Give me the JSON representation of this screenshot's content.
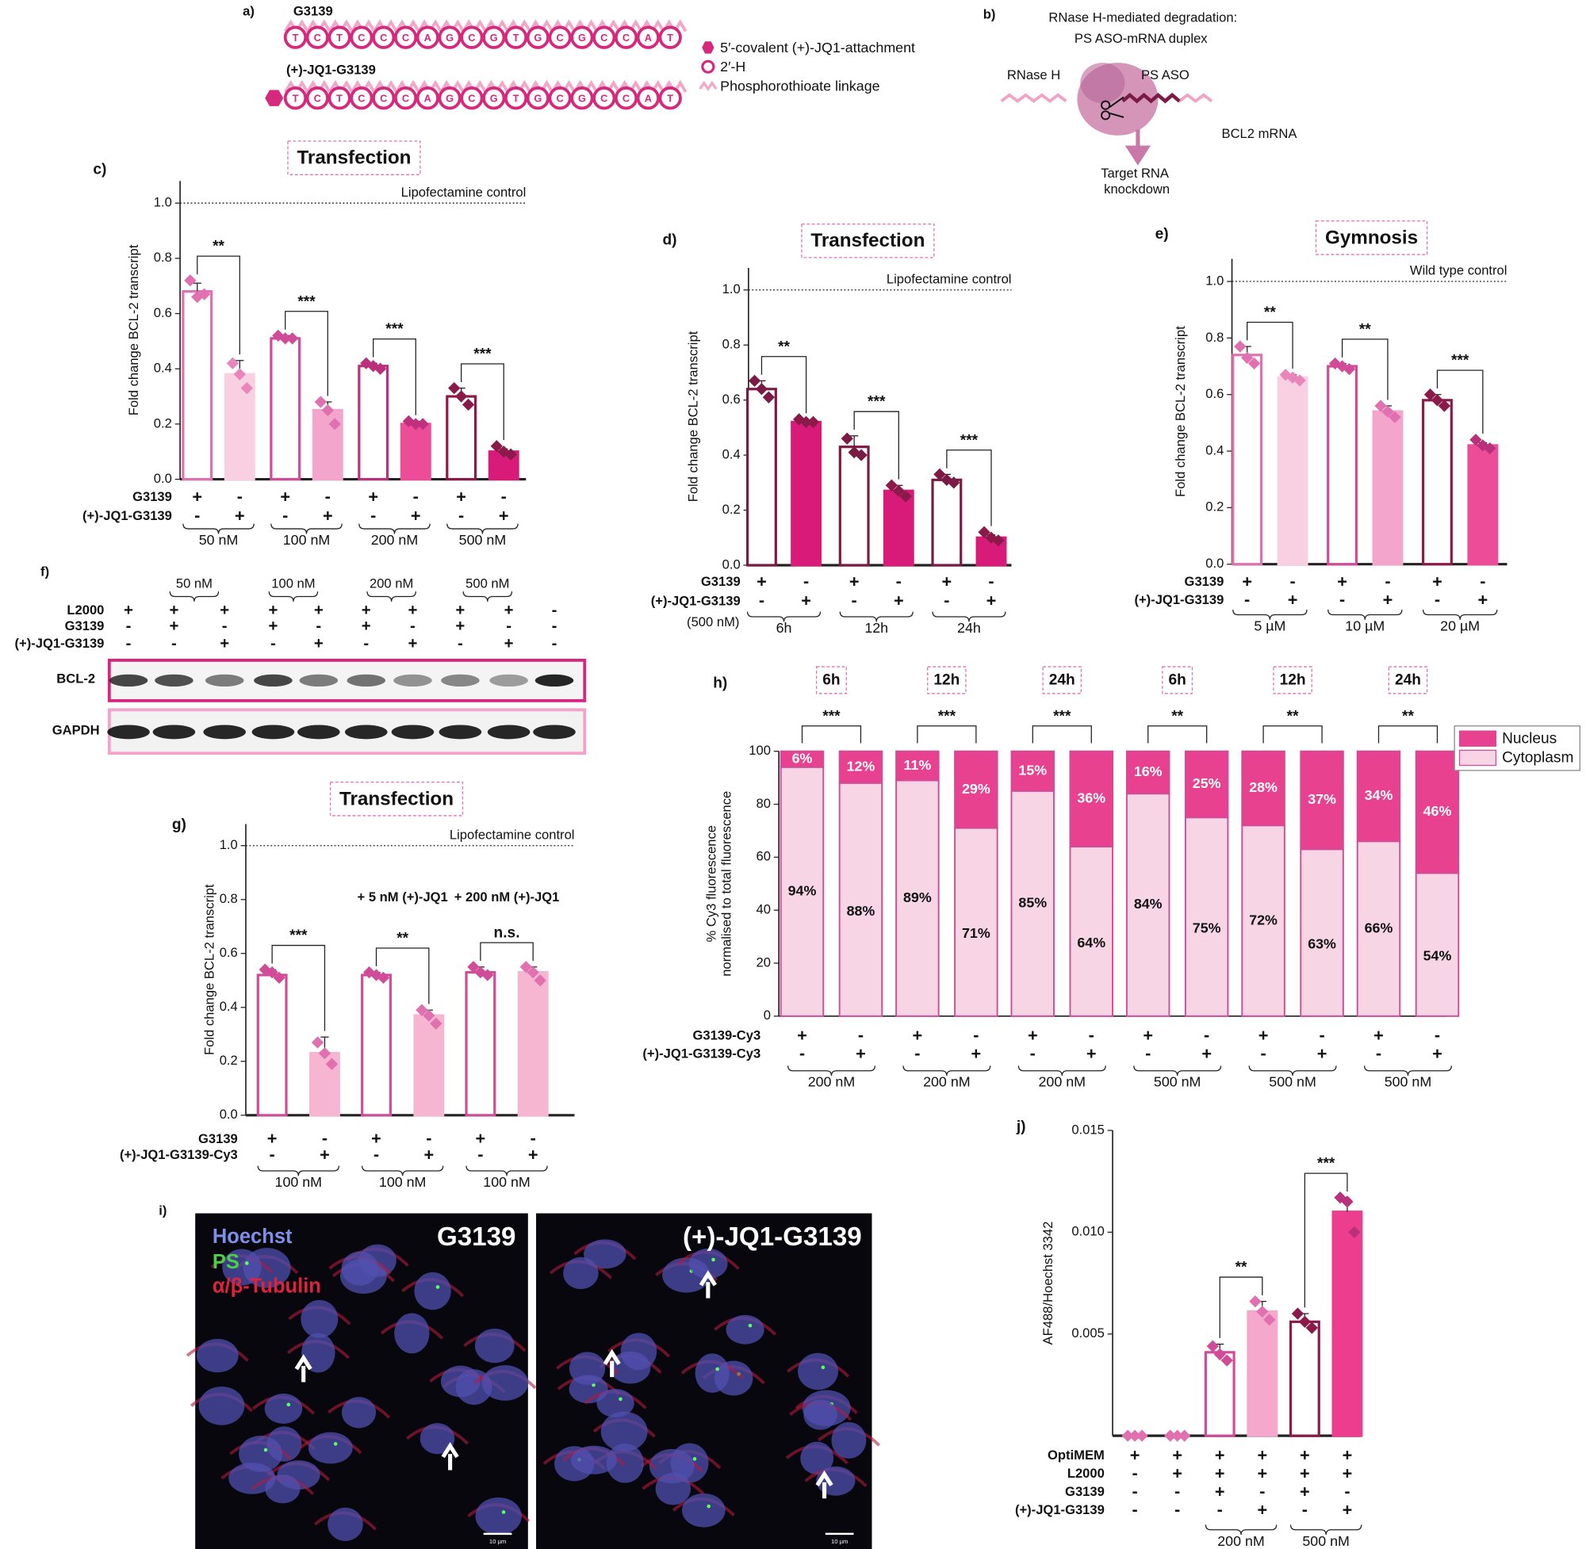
{
  "panel_a": {
    "label": "a)",
    "sequence_names": [
      "G3139",
      "(+)-JQ1-G3139"
    ],
    "sequence": [
      "T",
      "C",
      "T",
      "C",
      "C",
      "C",
      "A",
      "G",
      "C",
      "G",
      "T",
      "G",
      "C",
      "G",
      "C",
      "C",
      "A",
      "T"
    ],
    "legend": [
      "5′-covalent (+)-JQ1-attachment",
      "2′-H",
      "Phosphorothioate linkage"
    ]
  },
  "panel_b": {
    "label": "b)",
    "title": [
      "RNase H-mediated degradation:",
      "PS ASO-mRNA duplex"
    ],
    "labels": [
      "RNase H",
      "PS ASO",
      "BCL2 mRNA"
    ],
    "outcome": [
      "Target RNA",
      "knockdown"
    ]
  },
  "panel_f": {
    "label": "f)",
    "groups": [
      "50 nM",
      "100 nM",
      "200 nM",
      "500 nM"
    ],
    "conditions": [
      {
        "name": "L2000",
        "signs": [
          "+",
          "+",
          "+",
          "+",
          "+",
          "+",
          "+",
          "+",
          "+",
          "-"
        ]
      },
      {
        "name": "G3139",
        "signs": [
          "-",
          "+",
          "-",
          "+",
          "-",
          "+",
          "-",
          "+",
          "-",
          "-"
        ]
      },
      {
        "name": "(+)-JQ1-G3139",
        "signs": [
          "-",
          "-",
          "+",
          "-",
          "+",
          "-",
          "+",
          "-",
          "+",
          "-"
        ]
      }
    ],
    "bands": [
      "BCL-2",
      "GAPDH"
    ]
  },
  "panel_i": {
    "label": "i)",
    "stains": [
      "Hoechst",
      "PS",
      "α/β-Tubulin"
    ],
    "images": [
      "G3139",
      "(+)-JQ1-G3139"
    ],
    "scale_bar": "10 µm"
  },
  "chart_data": [
    {
      "type": "bar",
      "panel": "c)",
      "title": "Transfection",
      "y_label": "Fold change BCL-2 transcript",
      "ylim": [
        0,
        1.08
      ],
      "yticks": [
        {
          "value": 0,
          "label": "0.0"
        },
        0.2,
        0.4,
        0.6,
        0.8,
        {
          "value": 1,
          "label": "1.0"
        }
      ],
      "reference": {
        "value": 1,
        "label": "Lipofectamine control"
      },
      "values": [
        0.68,
        0.38,
        0.51,
        0.25,
        0.41,
        0.2,
        0.3,
        0.1
      ],
      "errors": [
        0.03,
        0.05,
        0.01,
        0.03,
        0.01,
        0.01,
        0.03,
        0.01
      ],
      "points": [
        [
          0.72,
          0.66,
          0.67
        ],
        [
          0.42,
          0.38,
          0.33
        ],
        [
          0.52,
          0.51,
          0.51
        ],
        [
          0.28,
          0.25,
          0.2
        ],
        [
          0.42,
          0.41,
          0.4
        ],
        [
          0.21,
          0.2,
          0.2
        ],
        [
          0.33,
          0.3,
          0.27
        ],
        [
          0.12,
          0.1,
          0.09
        ]
      ],
      "colors": [
        "#e070b0",
        "#e885bb",
        "#d04b98",
        "#e070b0",
        "#b8317a",
        "#c0307f",
        "#8b1a4a",
        "#8b1a4a"
      ],
      "fills": [
        "#ffffff",
        "#f9cfe2",
        "#ffffff",
        "#f3a5cb",
        "#ffffff",
        "#ec4c98",
        "#ffffff",
        "#d81b78"
      ],
      "conditions": [
        {
          "name": "G3139",
          "signs": [
            "+",
            "-",
            "+",
            "-",
            "+",
            "-",
            "+",
            "-"
          ]
        },
        {
          "name": "(+)-JQ1-G3139",
          "signs": [
            "-",
            "+",
            "-",
            "+",
            "-",
            "+",
            "-",
            "+"
          ]
        }
      ],
      "groups": [
        "50 nM",
        "100 nM",
        "200 nM",
        "500 nM"
      ],
      "significance": [
        "**",
        "***",
        "***",
        "***"
      ]
    },
    {
      "type": "bar",
      "panel": "d)",
      "title": "Transfection",
      "y_label": "Fold change BCL-2 transcript",
      "ylim": [
        0,
        1.08
      ],
      "yticks": [
        {
          "value": 0,
          "label": "0.0"
        },
        0.2,
        0.4,
        0.6,
        0.8,
        {
          "value": 1,
          "label": "1.0"
        }
      ],
      "reference": {
        "value": 1,
        "label": "Lipofectamine control"
      },
      "values": [
        0.64,
        0.52,
        0.43,
        0.27,
        0.31,
        0.1
      ],
      "errors": [
        0.03,
        0.005,
        0.04,
        0.02,
        0.02,
        0.01
      ],
      "points": [
        [
          0.67,
          0.64,
          0.61
        ],
        [
          0.53,
          0.52,
          0.52
        ],
        [
          0.46,
          0.41,
          0.4
        ],
        [
          0.29,
          0.27,
          0.25
        ],
        [
          0.33,
          0.31,
          0.3
        ],
        [
          0.12,
          0.1,
          0.09
        ]
      ],
      "colors": [
        "#7a1a45",
        "#8b1a4a",
        "#7a1a45",
        "#8b1a4a",
        "#7a1a45",
        "#8b1a4a"
      ],
      "fills": [
        "#ffffff",
        "#d81b78",
        "#ffffff",
        "#d81b78",
        "#ffffff",
        "#d81b78"
      ],
      "conditions": [
        {
          "name": "G3139",
          "signs": [
            "+",
            "-",
            "+",
            "-",
            "+",
            "-"
          ]
        },
        {
          "name": "(+)-JQ1-G3139",
          "signs": [
            "-",
            "+",
            "-",
            "+",
            "-",
            "+"
          ]
        }
      ],
      "note": "(500 nM)",
      "groups": [
        "6h",
        "12h",
        "24h"
      ],
      "significance": [
        "**",
        "***",
        "***"
      ]
    },
    {
      "type": "bar",
      "panel": "e)",
      "title": "Gymnosis",
      "y_label": "Fold change BCL-2 transcript",
      "ylim": [
        0,
        1.08
      ],
      "yticks": [
        {
          "value": 0,
          "label": "0.0"
        },
        0.2,
        0.4,
        0.6,
        0.8,
        {
          "value": 1,
          "label": "1.0"
        }
      ],
      "reference": {
        "value": 1,
        "label": "Wild type control"
      },
      "values": [
        0.74,
        0.66,
        0.7,
        0.54,
        0.58,
        0.42
      ],
      "errors": [
        0.03,
        0.01,
        0.01,
        0.02,
        0.02,
        0.01
      ],
      "points": [
        [
          0.77,
          0.73,
          0.71
        ],
        [
          0.67,
          0.66,
          0.65
        ],
        [
          0.71,
          0.7,
          0.69
        ],
        [
          0.56,
          0.54,
          0.52
        ],
        [
          0.6,
          0.58,
          0.56
        ],
        [
          0.44,
          0.42,
          0.41
        ]
      ],
      "colors": [
        "#e070b0",
        "#e885bb",
        "#d04b98",
        "#e070b0",
        "#8b1a4a",
        "#b8317a"
      ],
      "fills": [
        "#ffffff",
        "#f9cfe2",
        "#ffffff",
        "#f3a5cb",
        "#ffffff",
        "#ec4c98"
      ],
      "conditions": [
        {
          "name": "G3139",
          "signs": [
            "+",
            "-",
            "+",
            "-",
            "+",
            "-"
          ]
        },
        {
          "name": "(+)-JQ1-G3139",
          "signs": [
            "-",
            "+",
            "-",
            "+",
            "-",
            "+"
          ]
        }
      ],
      "groups": [
        "5 µM",
        "10 µM",
        "20 µM"
      ],
      "significance": [
        "**",
        "**",
        "***"
      ]
    },
    {
      "type": "bar",
      "panel": "g)",
      "title": "Transfection",
      "y_label": "Fold change BCL-2 transcript",
      "ylim": [
        0,
        1.08
      ],
      "yticks": [
        {
          "value": 0,
          "label": "0.0"
        },
        0.2,
        0.4,
        0.6,
        0.8,
        {
          "value": 1,
          "label": "1.0"
        }
      ],
      "reference": {
        "value": 1,
        "label": "Lipofectamine control"
      },
      "values": [
        0.52,
        0.23,
        0.52,
        0.37,
        0.53,
        0.53
      ],
      "errors": [
        0.02,
        0.06,
        0.01,
        0.02,
        0.02,
        0.02
      ],
      "points": [
        [
          0.54,
          0.53,
          0.51
        ],
        [
          0.27,
          0.23,
          0.19
        ],
        [
          0.53,
          0.52,
          0.51
        ],
        [
          0.39,
          0.37,
          0.34
        ],
        [
          0.55,
          0.53,
          0.52
        ],
        [
          0.55,
          0.53,
          0.5
        ]
      ],
      "colors": [
        "#d04b98",
        "#e070b0",
        "#d04b98",
        "#e070b0",
        "#d04b98",
        "#e070b0"
      ],
      "fills": [
        "#ffffff",
        "#f6b6d2",
        "#ffffff",
        "#f6b6d2",
        "#ffffff",
        "#f6b6d2"
      ],
      "conditions": [
        {
          "name": "G3139",
          "signs": [
            "+",
            "-",
            "+",
            "-",
            "+",
            "-"
          ]
        },
        {
          "name": "(+)-JQ1-G3139-Cy3",
          "signs": [
            "-",
            "+",
            "-",
            "+",
            "-",
            "+"
          ]
        }
      ],
      "annotations": [
        null,
        "+ 5 nM (+)-JQ1",
        "+ 200 nM (+)-JQ1"
      ],
      "groups": [
        "100 nM",
        "100 nM",
        "100 nM"
      ],
      "significance": [
        "***",
        "**",
        "n.s."
      ]
    },
    {
      "type": "stacked_bar",
      "panel": "h)",
      "y_label": [
        "% Cy3 fluorescence",
        "normalised to total fluorescence"
      ],
      "ylim": [
        0,
        100
      ],
      "yticks": [
        0,
        20,
        40,
        60,
        80,
        100
      ],
      "legend": "upper right",
      "series": [
        {
          "name": "Cytoplasm",
          "color": "#f8d5e5",
          "values": [
            94,
            88,
            89,
            71,
            85,
            64,
            84,
            75,
            72,
            63,
            66,
            54
          ],
          "value_labels": [
            "94%",
            "88%",
            "89%",
            "71%",
            "85%",
            "64%",
            "84%",
            "75%",
            "72%",
            "63%",
            "66%",
            "54%"
          ]
        },
        {
          "name": "Nucleus",
          "color": "#e8418f",
          "values": [
            6,
            12,
            11,
            29,
            15,
            36,
            16,
            25,
            28,
            37,
            34,
            46
          ],
          "value_labels": [
            "6%",
            "12%",
            "11%",
            "29%",
            "15%",
            "36%",
            "16%",
            "25%",
            "28%",
            "37%",
            "34%",
            "46%"
          ]
        }
      ],
      "time_labels": [
        "6h",
        "12h",
        "24h",
        "6h",
        "12h",
        "24h"
      ],
      "conditions": [
        {
          "name": "G3139-Cy3",
          "signs": [
            "+",
            "-",
            "+",
            "-",
            "+",
            "-",
            "+",
            "-",
            "+",
            "-",
            "+",
            "-"
          ]
        },
        {
          "name": "(+)-JQ1-G3139-Cy3",
          "signs": [
            "-",
            "+",
            "-",
            "+",
            "-",
            "+",
            "-",
            "+",
            "-",
            "+",
            "-",
            "+"
          ]
        }
      ],
      "groups": [
        "200 nM",
        "200 nM",
        "200 nM",
        "500 nM",
        "500 nM",
        "500 nM"
      ],
      "significance": [
        "***",
        "***",
        "***",
        "**",
        "**",
        "**"
      ]
    },
    {
      "type": "bar",
      "panel": "j)",
      "y_label": "AF488/Hoechst 3342",
      "ylim": [
        0,
        0.015
      ],
      "yticks": [
        0.005,
        {
          "value": 0.01,
          "label": "0.010"
        },
        0.015
      ],
      "values": [
        0,
        0,
        0.0041,
        0.0061,
        0.0056,
        0.011
      ],
      "errors": [
        0,
        0,
        0.0004,
        0.0005,
        0.0004,
        0.0006
      ],
      "points": [
        [
          0,
          0,
          0
        ],
        [
          0,
          0,
          0
        ],
        [
          0.0044,
          0.004,
          0.0037
        ],
        [
          0.0066,
          0.0061,
          0.0057
        ],
        [
          0.006,
          0.0056,
          0.0053
        ],
        [
          0.0117,
          0.0115,
          0.01
        ]
      ],
      "colors": [
        "#e070b0",
        "#e070b0",
        "#d04b98",
        "#e070b0",
        "#8b1a4a",
        "#b8317a"
      ],
      "fills": [
        "#ffffff",
        "#ffffff",
        "#ffffff",
        "#f5a8cc",
        "#ffffff",
        "#ec3d8f"
      ],
      "conditions": [
        {
          "name": "OptiMEM",
          "signs": [
            "+",
            "+",
            "+",
            "+",
            "+",
            "+"
          ]
        },
        {
          "name": "L2000",
          "signs": [
            "-",
            "+",
            "+",
            "+",
            "+",
            "+"
          ]
        },
        {
          "name": "G3139",
          "signs": [
            "-",
            "-",
            "+",
            "-",
            "+",
            "-"
          ]
        },
        {
          "name": "(+)-JQ1-G3139",
          "signs": [
            "-",
            "-",
            "-",
            "+",
            "-",
            "+"
          ]
        }
      ],
      "groups": [
        null,
        "200 nM",
        "500 nM"
      ],
      "significance": [
        null,
        "**",
        "***"
      ]
    }
  ]
}
